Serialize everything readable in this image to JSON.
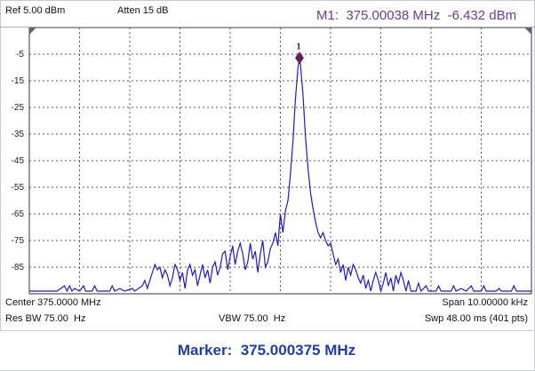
{
  "header": {
    "ref_level": "Ref 5.00 dBm",
    "attenuation": "Atten 15 dB",
    "marker_readout": "M1:  375.00038 MHz  -6.432 dBm"
  },
  "chart_data": {
    "type": "line",
    "y_tick_labels": [
      "-5",
      "-15",
      "-25",
      "-35",
      "-45",
      "-55",
      "-65",
      "-75",
      "-85"
    ],
    "ylim": [
      -95,
      5
    ],
    "xlim": [
      374.995,
      375.005
    ],
    "x_unit": "MHz",
    "y_unit": "dBm",
    "grid": true,
    "marker": {
      "label": "1",
      "x": 375.00038,
      "y": -6.432
    },
    "series": [
      {
        "points": [
          [
            374.995,
            -94
          ],
          [
            374.9952,
            -94
          ],
          [
            374.9954,
            -94
          ],
          [
            374.99555,
            -94
          ],
          [
            374.9957,
            -92
          ],
          [
            374.99575,
            -94
          ],
          [
            374.9958,
            -92
          ],
          [
            374.99585,
            -94
          ],
          [
            374.9959,
            -93
          ],
          [
            374.996,
            -94
          ],
          [
            374.99608,
            -92
          ],
          [
            374.99612,
            -94
          ],
          [
            374.99625,
            -94
          ],
          [
            374.9963,
            -92
          ],
          [
            374.99635,
            -94
          ],
          [
            374.9966,
            -94
          ],
          [
            374.99665,
            -92
          ],
          [
            374.9967,
            -94
          ],
          [
            374.9968,
            -93
          ],
          [
            374.9969,
            -94
          ],
          [
            374.99705,
            -93
          ],
          [
            374.9971,
            -94
          ],
          [
            374.99725,
            -92
          ],
          [
            374.9973,
            -90
          ],
          [
            374.99735,
            -93
          ],
          [
            374.99745,
            -87
          ],
          [
            374.9975,
            -84
          ],
          [
            374.99755,
            -86
          ],
          [
            374.9976,
            -85
          ],
          [
            374.99765,
            -89
          ],
          [
            374.9977,
            -86
          ],
          [
            374.99775,
            -88
          ],
          [
            374.9978,
            -92
          ],
          [
            374.99785,
            -89
          ],
          [
            374.9979,
            -84
          ],
          [
            374.99795,
            -86
          ],
          [
            374.998,
            -90
          ],
          [
            374.99805,
            -87
          ],
          [
            374.9981,
            -93
          ],
          [
            374.99815,
            -86
          ],
          [
            374.9982,
            -84
          ],
          [
            374.99825,
            -88
          ],
          [
            374.9983,
            -86
          ],
          [
            374.99835,
            -92
          ],
          [
            374.9984,
            -88
          ],
          [
            374.99845,
            -84
          ],
          [
            374.9985,
            -89
          ],
          [
            374.99855,
            -86
          ],
          [
            374.9986,
            -91
          ],
          [
            374.99865,
            -85
          ],
          [
            374.9987,
            -83
          ],
          [
            374.99875,
            -88
          ],
          [
            374.9988,
            -85
          ],
          [
            374.99885,
            -80
          ],
          [
            374.9989,
            -79
          ],
          [
            374.99895,
            -86
          ],
          [
            374.999,
            -81
          ],
          [
            374.99905,
            -77
          ],
          [
            374.9991,
            -84
          ],
          [
            374.99915,
            -79
          ],
          [
            374.9992,
            -76
          ],
          [
            374.99925,
            -80
          ],
          [
            374.9993,
            -86
          ],
          [
            374.99935,
            -83
          ],
          [
            374.9994,
            -76
          ],
          [
            374.99945,
            -82
          ],
          [
            374.9995,
            -79
          ],
          [
            374.99955,
            -87
          ],
          [
            374.9996,
            -80
          ],
          [
            374.99965,
            -75
          ],
          [
            374.9997,
            -85
          ],
          [
            374.99975,
            -83
          ],
          [
            374.9998,
            -78
          ],
          [
            374.99985,
            -76
          ],
          [
            374.9999,
            -72
          ],
          [
            374.99995,
            -77
          ],
          [
            375.0,
            -65
          ],
          [
            375.00005,
            -72
          ],
          [
            375.0001,
            -64
          ],
          [
            375.00015,
            -60
          ],
          [
            375.0002,
            -50
          ],
          [
            375.00025,
            -38
          ],
          [
            375.0003,
            -22
          ],
          [
            375.00035,
            -10
          ],
          [
            375.00038,
            -6.4
          ],
          [
            375.0004,
            -9
          ],
          [
            375.00045,
            -20
          ],
          [
            375.0005,
            -36
          ],
          [
            375.00055,
            -48
          ],
          [
            375.0006,
            -57
          ],
          [
            375.00065,
            -63
          ],
          [
            375.0007,
            -68
          ],
          [
            375.00075,
            -72
          ],
          [
            375.0008,
            -74
          ],
          [
            375.00085,
            -72
          ],
          [
            375.0009,
            -75
          ],
          [
            375.00095,
            -77
          ],
          [
            375.001,
            -76
          ],
          [
            375.00105,
            -80
          ],
          [
            375.0011,
            -84
          ],
          [
            375.00115,
            -82
          ],
          [
            375.0012,
            -87
          ],
          [
            375.00125,
            -84
          ],
          [
            375.0013,
            -90
          ],
          [
            375.00135,
            -85
          ],
          [
            375.0014,
            -88
          ],
          [
            375.00145,
            -84
          ],
          [
            375.0015,
            -86
          ],
          [
            375.00155,
            -89
          ],
          [
            375.0016,
            -91
          ],
          [
            375.00165,
            -88
          ],
          [
            375.0017,
            -93
          ],
          [
            375.00175,
            -90
          ],
          [
            375.0018,
            -94
          ],
          [
            375.00185,
            -90
          ],
          [
            375.0019,
            -87
          ],
          [
            375.00195,
            -90
          ],
          [
            375.002,
            -94
          ],
          [
            375.00205,
            -91
          ],
          [
            375.0021,
            -87
          ],
          [
            375.00215,
            -92
          ],
          [
            375.0022,
            -89
          ],
          [
            375.00225,
            -94
          ],
          [
            375.0023,
            -88
          ],
          [
            375.00235,
            -91
          ],
          [
            375.0024,
            -87
          ],
          [
            375.00245,
            -90
          ],
          [
            375.0025,
            -94
          ],
          [
            375.00255,
            -90
          ],
          [
            375.0026,
            -94
          ],
          [
            375.0027,
            -94
          ],
          [
            375.00275,
            -91
          ],
          [
            375.0028,
            -94
          ],
          [
            375.0029,
            -92
          ],
          [
            375.00295,
            -94
          ],
          [
            375.0031,
            -94
          ],
          [
            375.00315,
            -92
          ],
          [
            375.0032,
            -94
          ],
          [
            375.0034,
            -94
          ],
          [
            375.00345,
            -92
          ],
          [
            375.0035,
            -94
          ],
          [
            375.0036,
            -93
          ],
          [
            375.0037,
            -94
          ],
          [
            375.0038,
            -92
          ],
          [
            375.00385,
            -94
          ],
          [
            375.004,
            -94
          ],
          [
            375.00405,
            -92
          ],
          [
            375.0041,
            -94
          ],
          [
            375.0043,
            -94
          ],
          [
            375.00435,
            -93
          ],
          [
            375.0044,
            -94
          ],
          [
            375.0046,
            -94
          ],
          [
            375.00465,
            -92
          ],
          [
            375.0047,
            -94
          ],
          [
            375.0049,
            -94
          ],
          [
            375.005,
            -94
          ]
        ]
      }
    ]
  },
  "footer": {
    "center": "Center 375.0000 MHz",
    "span": "Span 10.00000 kHz",
    "res_bw": "Res BW 75.00  Hz",
    "vbw": "VBW 75.00  Hz",
    "sweep": "Swp 48.00 ms (401 pts)"
  },
  "status": {
    "marker_text": "Marker:  375.000375 MHz"
  },
  "colors": {
    "trace": "#1a1ad4",
    "marker": "#6a1a5f",
    "grid": "#555555",
    "readout": "#6a3d8f",
    "status_text": "#1f3fa8"
  }
}
